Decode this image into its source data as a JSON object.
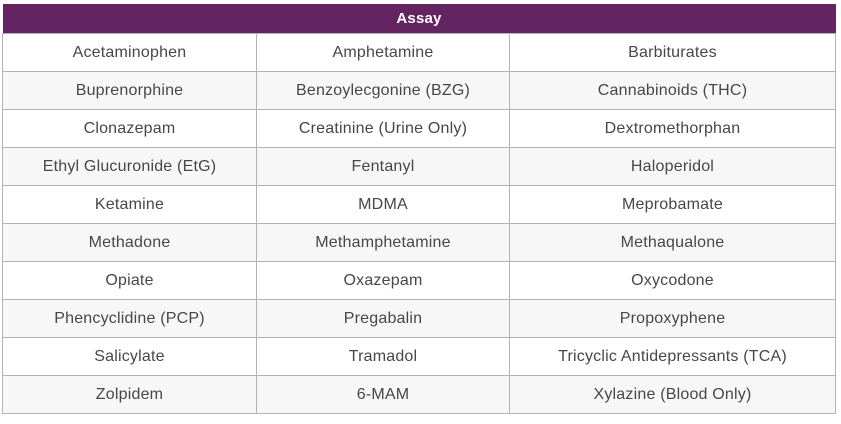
{
  "table": {
    "title": "Assay",
    "column_count": 3,
    "rows": [
      [
        "Acetaminophen",
        "Amphetamine",
        "Barbiturates"
      ],
      [
        "Buprenorphine",
        "Benzoylecgonine (BZG)",
        "Cannabinoids (THC)"
      ],
      [
        "Clonazepam",
        "Creatinine (Urine Only)",
        "Dextromethorphan"
      ],
      [
        "Ethyl Glucuronide (EtG)",
        "Fentanyl",
        "Haloperidol"
      ],
      [
        "Ketamine",
        "MDMA",
        "Meprobamate"
      ],
      [
        "Methadone",
        "Methamphetamine",
        "Methaqualone"
      ],
      [
        "Opiate",
        "Oxazepam",
        "Oxycodone"
      ],
      [
        "Phencyclidine (PCP)",
        "Pregabalin",
        "Propoxyphene"
      ],
      [
        "Salicylate",
        "Tramadol",
        "Tricyclic Antidepressants (TCA)"
      ],
      [
        "Zolpidem",
        "6-MAM",
        "Xylazine (Blood Only)"
      ]
    ]
  },
  "colors": {
    "header_bg": "#632461",
    "header_text": "#ffffff",
    "row_bg": "#ffffff",
    "row_alt_bg": "#f7f7f7",
    "border": "#b3b3b3",
    "text": "#474747"
  }
}
